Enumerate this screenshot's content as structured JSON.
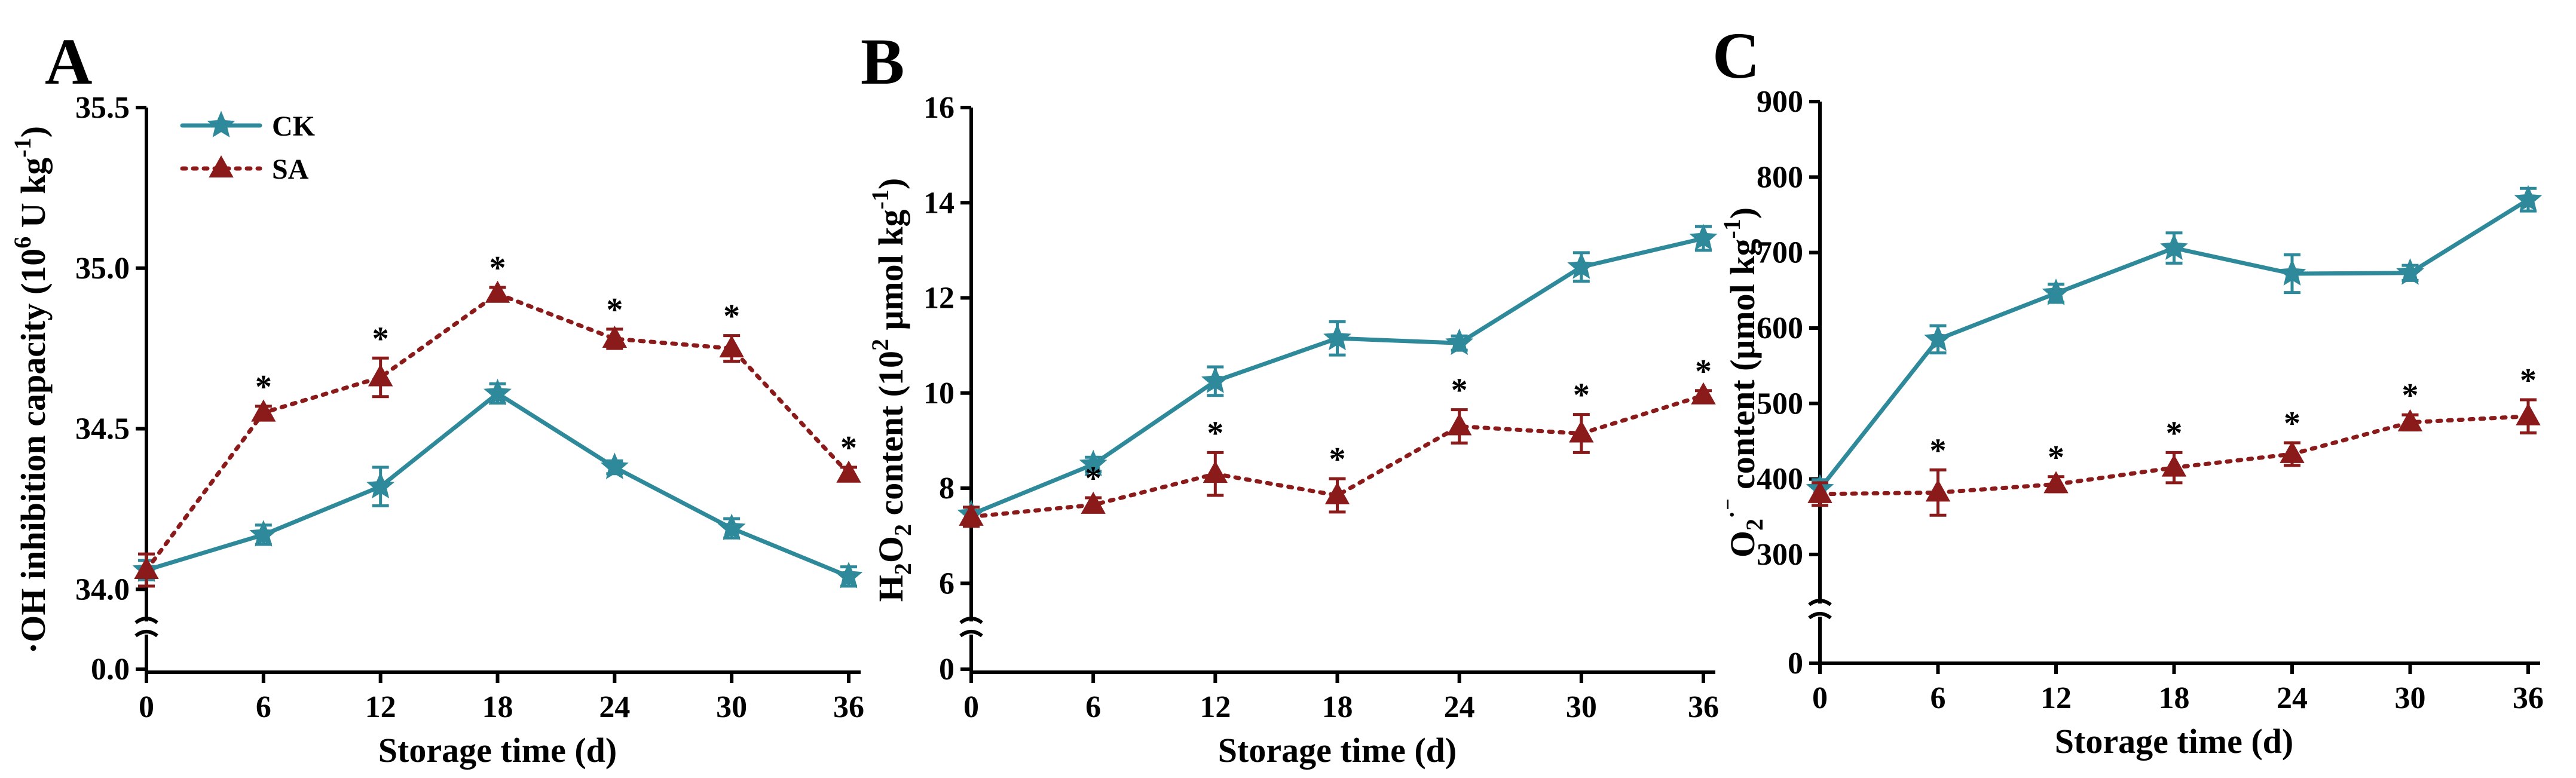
{
  "chart_data": [
    {
      "type": "line",
      "panel_label": "A",
      "xlabel": "Storage time (d)",
      "ylabel_parts": [
        "·OH inhibition capacity (10",
        "6",
        " U kg",
        "-1",
        ")"
      ],
      "x": [
        0,
        6,
        12,
        18,
        24,
        30,
        36
      ],
      "x_ticks": [
        "0",
        "6",
        "12",
        "18",
        "24",
        "30",
        "36"
      ],
      "y_break_low_tick": "0.0",
      "y_ticks": [
        "34.0",
        "34.5",
        "35.0",
        "35.5"
      ],
      "ylim": [
        33.9,
        35.5
      ],
      "legend": {
        "position": "top-left",
        "entries": [
          "CK",
          "SA"
        ]
      },
      "series": [
        {
          "name": "CK",
          "color": "#2E8A9A",
          "marker": "star",
          "line": "solid",
          "values": [
            34.06,
            34.17,
            34.32,
            34.61,
            34.38,
            34.19,
            34.04
          ],
          "errors": [
            0.03,
            0.03,
            0.06,
            0.03,
            0.02,
            0.03,
            0.03
          ]
        },
        {
          "name": "SA",
          "color": "#8B1A1A",
          "marker": "triangle",
          "line": "dotted",
          "values": [
            34.06,
            34.55,
            34.66,
            34.92,
            34.78,
            34.75,
            34.36
          ],
          "errors": [
            0.05,
            0.02,
            0.06,
            0.02,
            0.03,
            0.04,
            0.02
          ],
          "significance": [
            "",
            "*",
            "*",
            "*",
            "*",
            "*",
            "*"
          ]
        }
      ]
    },
    {
      "type": "line",
      "panel_label": "B",
      "xlabel": "Storage time (d)",
      "ylabel_parts": [
        "H",
        "2",
        "O",
        "2",
        " content (10",
        "2",
        " μmol kg",
        "-1",
        ")"
      ],
      "x": [
        0,
        6,
        12,
        18,
        24,
        30,
        36
      ],
      "x_ticks": [
        "0",
        "6",
        "12",
        "18",
        "24",
        "30",
        "36"
      ],
      "y_break_low_tick": "0",
      "y_ticks": [
        "6",
        "8",
        "10",
        "12",
        "14",
        "16"
      ],
      "ylim": [
        5.2,
        16
      ],
      "series": [
        {
          "name": "CK",
          "color": "#2E8A9A",
          "marker": "star",
          "line": "solid",
          "values": [
            7.45,
            8.5,
            10.25,
            11.15,
            11.05,
            12.65,
            13.25
          ],
          "errors": [
            0.15,
            0.15,
            0.3,
            0.35,
            0.15,
            0.3,
            0.25
          ]
        },
        {
          "name": "SA",
          "color": "#8B1A1A",
          "marker": "triangle",
          "line": "dotted",
          "values": [
            7.4,
            7.65,
            8.3,
            7.85,
            9.3,
            9.15,
            9.95
          ],
          "errors": [
            0.2,
            0.15,
            0.45,
            0.35,
            0.35,
            0.4,
            0.1
          ],
          "significance": [
            "",
            "*",
            "*",
            "*",
            "*",
            "*",
            "*"
          ]
        }
      ]
    },
    {
      "type": "line",
      "panel_label": "C",
      "xlabel": "Storage time (d)",
      "ylabel_parts": [
        "O",
        "2",
        "·⁻",
        " content (μmol kg",
        "-1",
        ")"
      ],
      "x": [
        0,
        6,
        12,
        18,
        24,
        30,
        36
      ],
      "x_ticks": [
        "0",
        "6",
        "12",
        "18",
        "24",
        "30",
        "36"
      ],
      "y_break_low_tick": "0",
      "y_ticks": [
        "300",
        "400",
        "500",
        "600",
        "700",
        "800",
        "900"
      ],
      "ylim": [
        235,
        900
      ],
      "series": [
        {
          "name": "CK",
          "color": "#2E8A9A",
          "marker": "star",
          "line": "solid",
          "values": [
            387,
            585,
            646,
            706,
            672,
            673,
            770
          ],
          "errors": [
            12,
            18,
            12,
            20,
            25,
            10,
            15
          ]
        },
        {
          "name": "SA",
          "color": "#8B1A1A",
          "marker": "triangle",
          "line": "dotted",
          "values": [
            380,
            382,
            393,
            415,
            433,
            475,
            483
          ],
          "errors": [
            15,
            30,
            10,
            20,
            15,
            10,
            22
          ],
          "significance": [
            "",
            "*",
            "*",
            "*",
            "*",
            "*",
            "*"
          ]
        }
      ]
    }
  ]
}
